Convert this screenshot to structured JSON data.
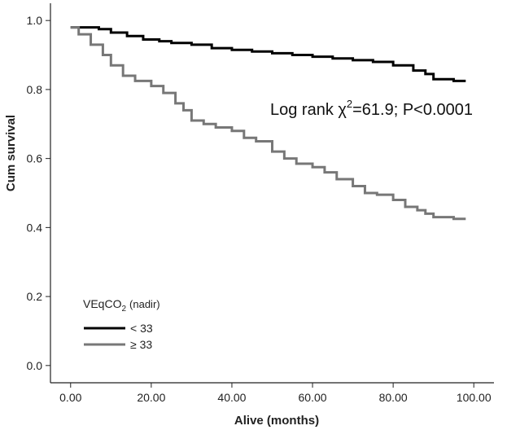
{
  "chart_data": {
    "type": "line",
    "title": "",
    "xlabel": "Alive (months)",
    "ylabel": "Cum survival",
    "xlim": [
      -5,
      105
    ],
    "ylim": [
      -0.05,
      1.05
    ],
    "x_ticks": [
      "0.00",
      "20.00",
      "40.00",
      "60.00",
      "80.00",
      "100.00"
    ],
    "x_tick_values": [
      0,
      20,
      40,
      60,
      80,
      100
    ],
    "y_ticks": [
      "0.0",
      "0.2",
      "0.4",
      "0.6",
      "0.8",
      "1.0"
    ],
    "y_tick_values": [
      0,
      0.2,
      0.4,
      0.6,
      0.8,
      1.0
    ],
    "grid": false,
    "step": true,
    "annotation": {
      "prefix": "Log rank χ",
      "sup": "2",
      "suffix": "=61.9; P<0.0001"
    },
    "legend": {
      "title_prefix": "VEqCO",
      "title_sub": "2",
      "title_suffix": "(nadir)",
      "placement": "bottom-left",
      "entries": [
        "< 33",
        "≥ 33"
      ]
    },
    "series": [
      {
        "name": "< 33",
        "color": "#000000",
        "x": [
          0,
          7,
          10,
          14,
          18,
          22,
          25,
          30,
          35,
          40,
          45,
          50,
          55,
          60,
          65,
          70,
          75,
          80,
          85,
          88,
          90,
          95,
          98
        ],
        "y": [
          0.98,
          0.975,
          0.965,
          0.955,
          0.945,
          0.94,
          0.935,
          0.93,
          0.92,
          0.915,
          0.91,
          0.905,
          0.9,
          0.895,
          0.89,
          0.885,
          0.88,
          0.87,
          0.855,
          0.845,
          0.83,
          0.825,
          0.825
        ]
      },
      {
        "name": "≥ 33",
        "color": "#777777",
        "x": [
          0,
          2,
          5,
          8,
          10,
          13,
          16,
          20,
          23,
          26,
          28,
          30,
          33,
          36,
          40,
          43,
          46,
          50,
          53,
          56,
          60,
          63,
          66,
          70,
          73,
          76,
          80,
          83,
          86,
          88,
          90,
          95,
          98
        ],
        "y": [
          0.98,
          0.96,
          0.93,
          0.9,
          0.87,
          0.84,
          0.825,
          0.81,
          0.79,
          0.76,
          0.74,
          0.71,
          0.7,
          0.69,
          0.68,
          0.66,
          0.65,
          0.62,
          0.6,
          0.585,
          0.575,
          0.56,
          0.54,
          0.52,
          0.5,
          0.495,
          0.48,
          0.46,
          0.45,
          0.44,
          0.43,
          0.425,
          0.425
        ]
      }
    ]
  }
}
